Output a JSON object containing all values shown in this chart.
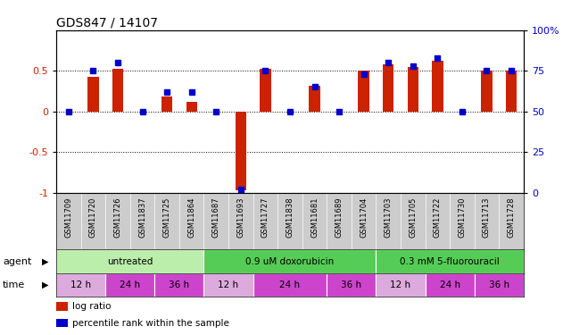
{
  "title": "GDS847 / 14107",
  "samples": [
    "GSM11709",
    "GSM11720",
    "GSM11726",
    "GSM11837",
    "GSM11725",
    "GSM11864",
    "GSM11687",
    "GSM11693",
    "GSM11727",
    "GSM11838",
    "GSM11681",
    "GSM11689",
    "GSM11704",
    "GSM11703",
    "GSM11705",
    "GSM11722",
    "GSM11730",
    "GSM11713",
    "GSM11728"
  ],
  "log_ratio": [
    0.0,
    0.42,
    0.52,
    0.0,
    0.18,
    0.12,
    0.0,
    -0.97,
    0.52,
    0.0,
    0.32,
    0.0,
    0.5,
    0.58,
    0.55,
    0.62,
    0.0,
    0.5,
    0.5
  ],
  "percentile": [
    50,
    75,
    80,
    50,
    62,
    62,
    50,
    2,
    75,
    50,
    65,
    50,
    73,
    80,
    78,
    83,
    50,
    75,
    75
  ],
  "agent_groups": [
    {
      "label": "untreated",
      "start": 0,
      "end": 5,
      "color": "#bbeeaa"
    },
    {
      "label": "0.9 uM doxorubicin",
      "start": 6,
      "end": 12,
      "color": "#55cc55"
    },
    {
      "label": "0.3 mM 5-fluorouracil",
      "start": 13,
      "end": 18,
      "color": "#55cc55"
    }
  ],
  "time_groups": [
    {
      "label": "12 h",
      "start": 0,
      "end": 1,
      "color": "#ddaadd"
    },
    {
      "label": "24 h",
      "start": 2,
      "end": 3,
      "color": "#cc44cc"
    },
    {
      "label": "36 h",
      "start": 4,
      "end": 5,
      "color": "#cc44cc"
    },
    {
      "label": "12 h",
      "start": 6,
      "end": 7,
      "color": "#ddaadd"
    },
    {
      "label": "24 h",
      "start": 8,
      "end": 10,
      "color": "#cc44cc"
    },
    {
      "label": "36 h",
      "start": 11,
      "end": 12,
      "color": "#cc44cc"
    },
    {
      "label": "12 h",
      "start": 13,
      "end": 14,
      "color": "#ddaadd"
    },
    {
      "label": "24 h",
      "start": 15,
      "end": 16,
      "color": "#cc44cc"
    },
    {
      "label": "36 h",
      "start": 17,
      "end": 18,
      "color": "#cc44cc"
    }
  ],
  "bar_color": "#cc2200",
  "percentile_color": "#0000cc",
  "ylim_left": [
    -1,
    1
  ],
  "ylim_right": [
    0,
    100
  ],
  "yticks_left": [
    -1,
    -0.5,
    0,
    0.5
  ],
  "yticks_right": [
    0,
    25,
    50,
    75,
    100
  ],
  "hlines": [
    -0.5,
    0,
    0.5
  ],
  "tick_label_color_left": "#cc2200",
  "tick_label_color_right": "#0000cc",
  "agent_label": "agent",
  "time_label": "time",
  "legend_items": [
    {
      "color": "#cc2200",
      "label": "log ratio"
    },
    {
      "color": "#0000cc",
      "label": "percentile rank within the sample"
    }
  ]
}
